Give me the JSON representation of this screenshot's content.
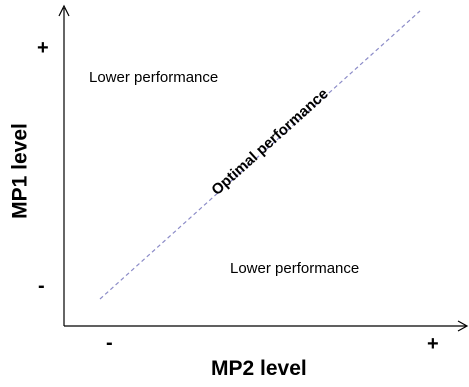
{
  "diagram": {
    "x_axis": {
      "title": "MP2 level",
      "low_tick": "-",
      "high_tick": "+"
    },
    "y_axis": {
      "title": "MP1 level",
      "low_tick": "-",
      "high_tick": "+"
    },
    "regions": {
      "upper_left": "Lower performance",
      "lower_right": "Lower performance"
    },
    "diagonal": {
      "label": "Optimal performance",
      "style": "dashed",
      "color": "#8c8cc8"
    },
    "colors": {
      "axes": "#000000",
      "text": "#000000"
    }
  }
}
